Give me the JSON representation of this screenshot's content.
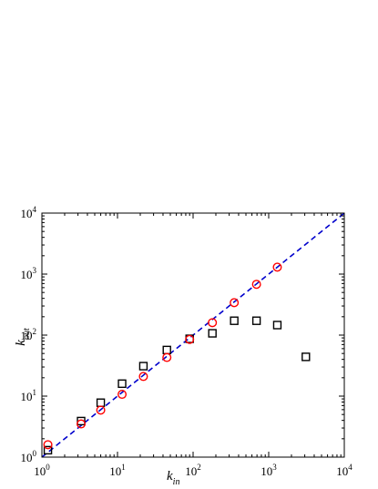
{
  "chart_data": {
    "type": "scatter",
    "title": "",
    "xlabel": {
      "base": "k",
      "sub": "in"
    },
    "ylabel": {
      "base": "k",
      "sub": "out"
    },
    "x_scale": "log",
    "y_scale": "log",
    "xlim": [
      1,
      10000
    ],
    "ylim": [
      1,
      10000
    ],
    "grid": false,
    "legend": "none",
    "x_ticks": [
      {
        "value": 1,
        "base": "10",
        "exp": "0"
      },
      {
        "value": 10,
        "base": "10",
        "exp": "1"
      },
      {
        "value": 100,
        "base": "10",
        "exp": "2"
      },
      {
        "value": 1000,
        "base": "10",
        "exp": "3"
      },
      {
        "value": 10000,
        "base": "10",
        "exp": "4"
      }
    ],
    "y_ticks": [
      {
        "value": 1,
        "base": "10",
        "exp": "0"
      },
      {
        "value": 10,
        "base": "10",
        "exp": "1"
      },
      {
        "value": 100,
        "base": "10",
        "exp": "2"
      },
      {
        "value": 1000,
        "base": "10",
        "exp": "3"
      },
      {
        "value": 10000,
        "base": "10",
        "exp": "4"
      }
    ],
    "reference_line": {
      "style": "dashed",
      "color": "#0000cc",
      "x": [
        1,
        10000
      ],
      "y": [
        1,
        10000
      ]
    },
    "series": [
      {
        "marker": "square",
        "color": "#000000",
        "x": [
          1.2,
          3.3,
          6.0,
          11.5,
          22,
          45,
          90,
          180,
          350,
          690,
          1300,
          3100
        ],
        "y": [
          1.3,
          3.9,
          7.8,
          16,
          31,
          57,
          87,
          107,
          172,
          172,
          146,
          44
        ]
      },
      {
        "marker": "circle",
        "color": "#ff0000",
        "x": [
          1.2,
          3.3,
          6.0,
          11.5,
          22,
          45,
          90,
          180,
          350,
          690,
          1300
        ],
        "y": [
          1.6,
          3.5,
          5.9,
          10.7,
          21,
          43,
          85,
          160,
          340,
          680,
          1300
        ]
      }
    ]
  }
}
